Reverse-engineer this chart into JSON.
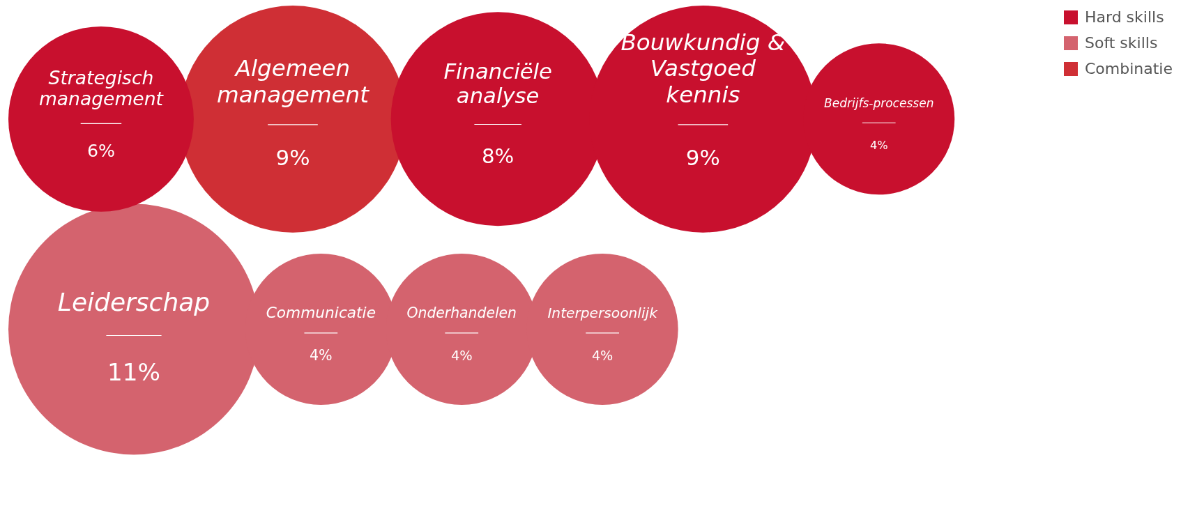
{
  "chart_data": {
    "type": "other",
    "legend": "top right",
    "data_labels": true,
    "categories": [
      "Strategisch management",
      "Algemeen management",
      "Financiële analyse",
      "Bouwkundig & Vastgoed kennis",
      "Bedrijfs-processen",
      "Leiderschap",
      "Communicatie",
      "Onderhandelen",
      "Interpersoonlijk"
    ],
    "series": [
      {
        "name": "Hard skills",
        "color": "#c8102e",
        "values": [
          6,
          null,
          8,
          9,
          4,
          null,
          null,
          null,
          null
        ],
        "value_labels": [
          "6%",
          null,
          "8%",
          "9%",
          "4%",
          null,
          null,
          null,
          null
        ]
      },
      {
        "name": "Soft skills",
        "color": "#d4636e",
        "values": [
          null,
          null,
          null,
          null,
          null,
          11,
          4,
          4,
          4
        ],
        "value_labels": [
          null,
          null,
          null,
          null,
          null,
          "11%",
          "4%",
          "4%",
          "4%"
        ]
      },
      {
        "name": "Combinatie",
        "color": "#cf2f35",
        "values": [
          null,
          9,
          null,
          null,
          null,
          null,
          null,
          null,
          null
        ],
        "value_labels": [
          null,
          "9%",
          null,
          null,
          null,
          null,
          null,
          null,
          null
        ]
      }
    ]
  }
}
